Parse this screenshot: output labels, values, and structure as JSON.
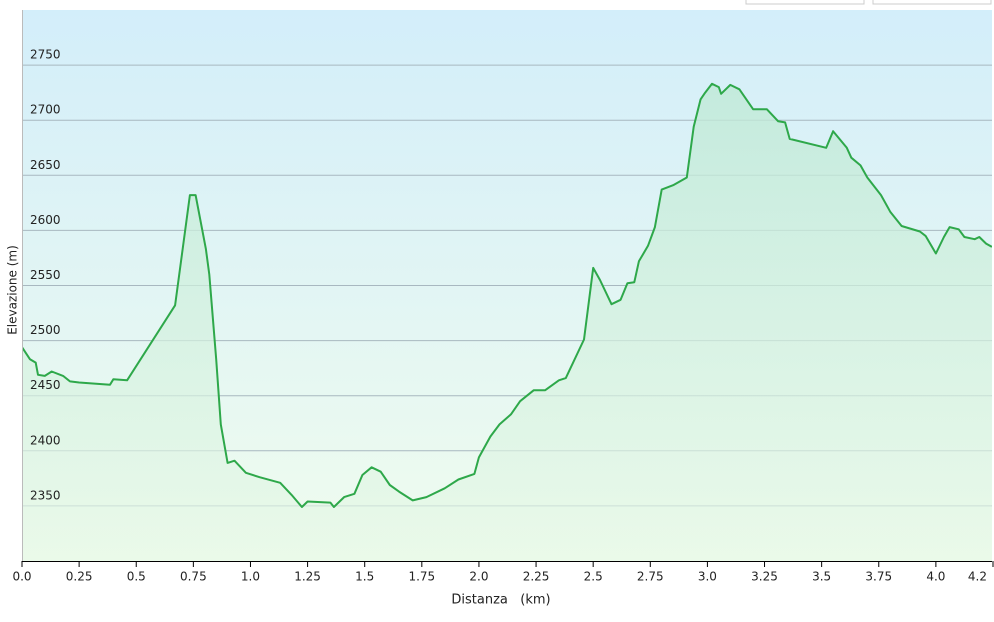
{
  "chart_data": {
    "type": "area",
    "x_label": "Distanza   (km)",
    "y_label": "Elevazione (m)",
    "color": "#2ea84a",
    "grid": true,
    "xlim": [
      0,
      4.25
    ],
    "ylim": [
      2300,
      2800
    ],
    "xticks": [
      {
        "value": 0,
        "label": "0.0"
      },
      0.25,
      0.5,
      {
        "value": 0.75,
        "label": "0.75"
      },
      {
        "value": 1,
        "label": "1.0"
      },
      1.25,
      1.5,
      1.75,
      {
        "value": 2,
        "label": "2.0"
      },
      2.25,
      2.5,
      2.75,
      {
        "value": 3,
        "label": "3.0"
      },
      3.25,
      3.5,
      3.75,
      {
        "value": 4,
        "label": "4.0"
      },
      {
        "value": 4.25,
        "label": "4.2"
      }
    ],
    "yticks": [
      2350,
      2400,
      2450,
      2500,
      2550,
      2600,
      2650,
      2700,
      2750
    ],
    "x": [
      0,
      0.035,
      0.06,
      0.07,
      0.1,
      0.13,
      0.18,
      0.21,
      0.25,
      0.385,
      0.4,
      0.46,
      0.67,
      0.735,
      0.76,
      0.805,
      0.82,
      0.85,
      0.87,
      0.9,
      0.93,
      0.98,
      1.04,
      1.13,
      1.18,
      1.225,
      1.25,
      1.35,
      1.365,
      1.41,
      1.455,
      1.49,
      1.53,
      1.57,
      1.61,
      1.65,
      1.71,
      1.77,
      1.85,
      1.91,
      1.98,
      2.0,
      2.05,
      2.09,
      2.14,
      2.18,
      2.24,
      2.29,
      2.35,
      2.38,
      2.46,
      2.5,
      2.53,
      2.58,
      2.62,
      2.65,
      2.68,
      2.7,
      2.74,
      2.77,
      2.8,
      2.85,
      2.91,
      2.94,
      2.97,
      2.99,
      3.02,
      3.05,
      3.06,
      3.1,
      3.14,
      3.2,
      3.26,
      3.31,
      3.34,
      3.36,
      3.52,
      3.55,
      3.61,
      3.63,
      3.67,
      3.7,
      3.76,
      3.8,
      3.85,
      3.93,
      3.955,
      4.0,
      4.035,
      4.06,
      4.1,
      4.125,
      4.17,
      4.19,
      4.22,
      4.245
    ],
    "values": [
      2494,
      2483,
      2480,
      2469,
      2468,
      2472,
      2468,
      2463,
      2462,
      2460,
      2465,
      2464,
      2532,
      2632,
      2632,
      2583,
      2560,
      2483,
      2424,
      2389,
      2391,
      2380,
      2376,
      2371,
      2360,
      2349,
      2354,
      2353,
      2349,
      2358,
      2361,
      2378,
      2385,
      2381,
      2369,
      2363,
      2355,
      2358,
      2366,
      2374,
      2379,
      2394,
      2413,
      2424,
      2433,
      2445,
      2455,
      2455,
      2464,
      2466,
      2501,
      2566,
      2555,
      2533,
      2537,
      2552,
      2553,
      2572,
      2586,
      2603,
      2637,
      2641,
      2648,
      2694,
      2719,
      2725,
      2733,
      2730,
      2724,
      2732,
      2728,
      2710,
      2710,
      2699,
      2698,
      2683,
      2675,
      2690,
      2675,
      2666,
      2659,
      2648,
      2632,
      2617,
      2604,
      2599,
      2595,
      2579,
      2594,
      2603,
      2601,
      2594,
      2592,
      2594,
      2588,
      2585
    ]
  }
}
